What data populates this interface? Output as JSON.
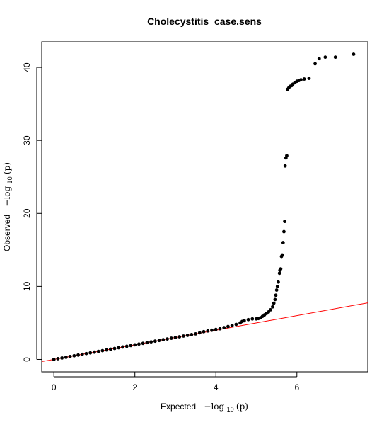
{
  "chart_data": {
    "type": "scatter",
    "title": "Cholecystitis_case.sens",
    "xlabel": {
      "prefix": "Expected",
      "math": "−log",
      "sub": "10",
      "arg": "(p)"
    },
    "ylabel": {
      "prefix": "Observed",
      "math": "−log",
      "sub": "10",
      "arg": "(p)"
    },
    "xlim": [
      -0.3,
      7.75
    ],
    "ylim": [
      -1.7,
      43.5
    ],
    "xticks": [
      0,
      2,
      4,
      6
    ],
    "yticks": [
      0,
      10,
      20,
      30,
      40
    ],
    "reference_line": {
      "slope": 1,
      "intercept": 0,
      "color": "#ff0000"
    },
    "series": [
      {
        "color": "#000000",
        "points": [
          [
            0.0,
            0.0
          ],
          [
            0.1,
            0.1
          ],
          [
            0.2,
            0.2
          ],
          [
            0.3,
            0.3
          ],
          [
            0.4,
            0.4
          ],
          [
            0.5,
            0.5
          ],
          [
            0.6,
            0.6
          ],
          [
            0.7,
            0.7
          ],
          [
            0.8,
            0.8
          ],
          [
            0.9,
            0.9
          ],
          [
            1.0,
            1.0
          ],
          [
            1.1,
            1.1
          ],
          [
            1.2,
            1.2
          ],
          [
            1.3,
            1.3
          ],
          [
            1.4,
            1.4
          ],
          [
            1.5,
            1.5
          ],
          [
            1.6,
            1.6
          ],
          [
            1.7,
            1.7
          ],
          [
            1.8,
            1.8
          ],
          [
            1.9,
            1.9
          ],
          [
            2.0,
            2.0
          ],
          [
            2.1,
            2.1
          ],
          [
            2.2,
            2.2
          ],
          [
            2.3,
            2.3
          ],
          [
            2.4,
            2.4
          ],
          [
            2.5,
            2.5
          ],
          [
            2.6,
            2.6
          ],
          [
            2.7,
            2.7
          ],
          [
            2.8,
            2.8
          ],
          [
            2.9,
            2.9
          ],
          [
            3.0,
            3.0
          ],
          [
            3.1,
            3.1
          ],
          [
            3.2,
            3.2
          ],
          [
            3.3,
            3.3
          ],
          [
            3.4,
            3.4
          ],
          [
            3.5,
            3.5
          ],
          [
            3.6,
            3.65
          ],
          [
            3.7,
            3.8
          ],
          [
            3.8,
            3.9
          ],
          [
            3.9,
            4.0
          ],
          [
            4.0,
            4.1
          ],
          [
            4.1,
            4.2
          ],
          [
            4.2,
            4.35
          ],
          [
            4.3,
            4.5
          ],
          [
            4.4,
            4.65
          ],
          [
            4.5,
            4.8
          ],
          [
            4.6,
            5.0
          ],
          [
            4.65,
            5.2
          ],
          [
            4.7,
            5.3
          ],
          [
            4.8,
            5.45
          ],
          [
            4.9,
            5.55
          ],
          [
            5.0,
            5.55
          ],
          [
            5.05,
            5.6
          ],
          [
            5.1,
            5.7
          ],
          [
            5.15,
            5.9
          ],
          [
            5.2,
            6.1
          ],
          [
            5.25,
            6.3
          ],
          [
            5.3,
            6.5
          ],
          [
            5.35,
            6.8
          ],
          [
            5.4,
            7.2
          ],
          [
            5.43,
            7.7
          ],
          [
            5.46,
            8.2
          ],
          [
            5.48,
            8.8
          ],
          [
            5.5,
            9.5
          ],
          [
            5.52,
            10.0
          ],
          [
            5.54,
            10.6
          ],
          [
            5.57,
            11.8
          ],
          [
            5.58,
            12.2
          ],
          [
            5.6,
            12.4
          ],
          [
            5.62,
            14.1
          ],
          [
            5.64,
            14.3
          ],
          [
            5.66,
            16.0
          ],
          [
            5.68,
            17.5
          ],
          [
            5.7,
            18.9
          ],
          [
            5.71,
            26.5
          ],
          [
            5.73,
            27.6
          ],
          [
            5.75,
            27.9
          ],
          [
            5.77,
            37.0
          ],
          [
            5.8,
            37.2
          ],
          [
            5.83,
            37.4
          ],
          [
            5.87,
            37.5
          ],
          [
            5.9,
            37.7
          ],
          [
            5.95,
            37.9
          ],
          [
            6.0,
            38.1
          ],
          [
            6.05,
            38.2
          ],
          [
            6.1,
            38.3
          ],
          [
            6.18,
            38.4
          ],
          [
            6.3,
            38.5
          ],
          [
            6.45,
            40.5
          ],
          [
            6.55,
            41.2
          ],
          [
            6.7,
            41.4
          ],
          [
            6.95,
            41.4
          ],
          [
            7.4,
            41.8
          ]
        ]
      }
    ]
  }
}
